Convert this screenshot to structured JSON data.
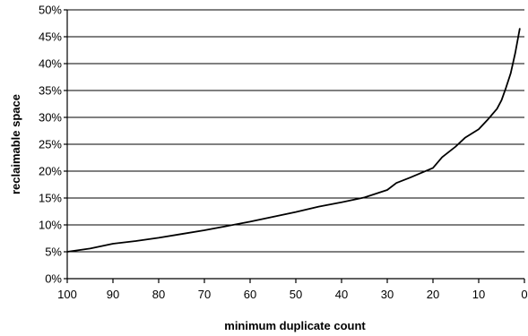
{
  "chart_data": {
    "type": "line",
    "title": "",
    "xlabel": "minimum duplicate count",
    "ylabel": "reclaimable space",
    "x_reversed": true,
    "xlim": [
      100,
      0
    ],
    "ylim": [
      0,
      50
    ],
    "x_ticks": [
      100,
      90,
      80,
      70,
      60,
      50,
      40,
      30,
      20,
      10,
      0
    ],
    "x_tick_labels": [
      "100",
      "90",
      "80",
      "70",
      "60",
      "50",
      "40",
      "30",
      "20",
      "10",
      "0"
    ],
    "y_ticks": [
      0,
      5,
      10,
      15,
      20,
      25,
      30,
      35,
      40,
      45,
      50
    ],
    "y_tick_labels": [
      "0%",
      "5%",
      "10%",
      "15%",
      "20%",
      "25%",
      "30%",
      "35%",
      "40%",
      "45%",
      "50%"
    ],
    "grid": "horizontal",
    "legend": "none",
    "series": [
      {
        "x": [
          100,
          95,
          90,
          85,
          80,
          75,
          70,
          65,
          60,
          55,
          50,
          45,
          40,
          35,
          30,
          28,
          25,
          20,
          18,
          15,
          13,
          10,
          8,
          6,
          5,
          4,
          3,
          2,
          1
        ],
        "y": [
          5.0,
          5.6,
          6.5,
          7.0,
          7.6,
          8.3,
          9.0,
          9.8,
          10.6,
          11.5,
          12.4,
          13.4,
          14.2,
          15.1,
          16.5,
          17.8,
          18.8,
          20.6,
          22.6,
          24.6,
          26.2,
          27.8,
          29.6,
          31.6,
          33.2,
          35.6,
          38.2,
          42.0,
          46.6
        ]
      }
    ]
  }
}
